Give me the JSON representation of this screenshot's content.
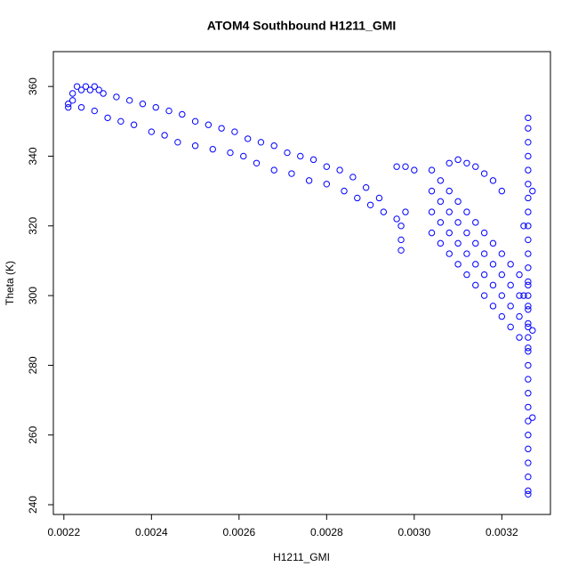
{
  "chart_data": {
    "type": "scatter",
    "title": "ATOM4 Southbound H1211_GMI",
    "x_label": "H1211_GMI",
    "y_label": "Theta (K)",
    "color": "#0000ff",
    "xlim": [
      0.002176,
      0.003311
    ],
    "ylim": [
      237.2,
      370
    ],
    "xticks": [
      0.0022,
      0.0024,
      0.0026,
      0.0028,
      {
        "value": 0.003,
        "label": "0.0030"
      },
      0.0032
    ],
    "yticks": [
      240,
      260,
      280,
      300,
      320,
      340,
      360
    ],
    "x": [
      0.00222,
      0.00223,
      0.00224,
      0.00225,
      0.00226,
      0.00227,
      0.00228,
      0.00222,
      0.00221,
      0.00229,
      0.00232,
      0.00235,
      0.00238,
      0.00241,
      0.00244,
      0.00247,
      0.0025,
      0.00253,
      0.00256,
      0.00259,
      0.00262,
      0.00265,
      0.00268,
      0.00271,
      0.00274,
      0.00277,
      0.0028,
      0.00283,
      0.00286,
      0.00289,
      0.00292,
      0.00221,
      0.00224,
      0.00227,
      0.0023,
      0.00233,
      0.00236,
      0.0024,
      0.00243,
      0.00246,
      0.0025,
      0.00254,
      0.00258,
      0.00261,
      0.00264,
      0.00268,
      0.00272,
      0.00276,
      0.0028,
      0.00284,
      0.00287,
      0.0029,
      0.00293,
      0.00296,
      0.00297,
      0.00297,
      0.00297,
      0.00298,
      0.00296,
      0.00298,
      0.003,
      0.00308,
      0.0031,
      0.00312,
      0.00314,
      0.00316,
      0.00318,
      0.0032,
      0.00304,
      0.00306,
      0.00308,
      0.0031,
      0.00312,
      0.00314,
      0.00316,
      0.00318,
      0.0032,
      0.00322,
      0.00324,
      0.00326,
      0.00304,
      0.00306,
      0.00308,
      0.0031,
      0.00312,
      0.00314,
      0.00316,
      0.00318,
      0.0032,
      0.00322,
      0.00324,
      0.00326,
      0.00304,
      0.00306,
      0.00308,
      0.0031,
      0.00312,
      0.00314,
      0.00316,
      0.00318,
      0.0032,
      0.00322,
      0.00324,
      0.00326,
      0.00304,
      0.00306,
      0.00308,
      0.0031,
      0.00312,
      0.00314,
      0.00316,
      0.00318,
      0.0032,
      0.00322,
      0.00324,
      0.00326,
      0.00326,
      0.00326,
      0.00326,
      0.00326,
      0.00326,
      0.00326,
      0.00326,
      0.00326,
      0.00326,
      0.00326,
      0.00326,
      0.00326,
      0.00326,
      0.00326,
      0.00326,
      0.00326,
      0.00326,
      0.00326,
      0.00326,
      0.00326,
      0.00326,
      0.00326,
      0.00326,
      0.00326,
      0.00326,
      0.00326,
      0.00326,
      0.00325,
      0.00327,
      0.00325,
      0.00327,
      0.00326,
      0.00326,
      0.00327
    ],
    "y": [
      358,
      360,
      359,
      360,
      359,
      360,
      359,
      356,
      355,
      358,
      357,
      356,
      355,
      354,
      353,
      352,
      350,
      349,
      348,
      347,
      345,
      344,
      343,
      341,
      340,
      339,
      337,
      336,
      334,
      331,
      328,
      354,
      354,
      353,
      351,
      350,
      349,
      347,
      346,
      344,
      343,
      342,
      341,
      340,
      338,
      336,
      335,
      333,
      332,
      330,
      328,
      326,
      324,
      322,
      320,
      316,
      313,
      324,
      337,
      337,
      336,
      338,
      339,
      338,
      337,
      335,
      333,
      330,
      336,
      333,
      330,
      327,
      324,
      321,
      318,
      315,
      312,
      309,
      306,
      303,
      330,
      327,
      324,
      321,
      318,
      315,
      312,
      309,
      306,
      303,
      300,
      297,
      324,
      321,
      318,
      315,
      312,
      309,
      306,
      303,
      300,
      297,
      294,
      291,
      318,
      315,
      312,
      309,
      306,
      303,
      300,
      297,
      294,
      291,
      288,
      285,
      244,
      248,
      252,
      256,
      260,
      264,
      268,
      272,
      276,
      280,
      284,
      288,
      292,
      296,
      300,
      304,
      308,
      312,
      316,
      320,
      324,
      328,
      332,
      336,
      340,
      344,
      348,
      300,
      290,
      320,
      330,
      351,
      243,
      265
    ]
  }
}
